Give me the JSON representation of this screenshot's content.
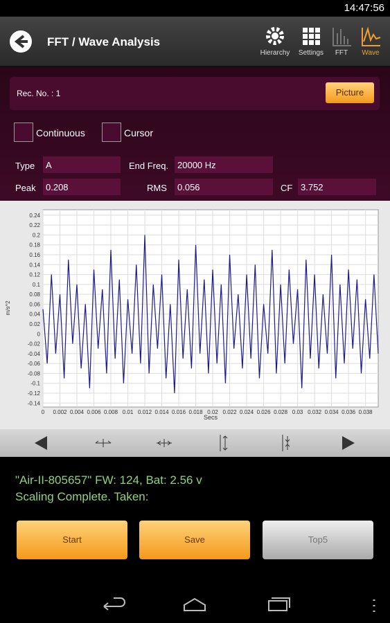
{
  "status_bar": {
    "time": "14:47:56"
  },
  "app_bar": {
    "title": "FFT / Wave Analysis",
    "actions": [
      "Hierarchy",
      "Settings",
      "FFT",
      "Wave"
    ]
  },
  "record": {
    "label": "Rec. No. : 1",
    "button": "Picture"
  },
  "options": [
    "Continuous",
    "Cursor"
  ],
  "fields": [
    {
      "label": "Type",
      "value": "A"
    },
    {
      "label": "End Freq.",
      "value": "20000 Hz"
    },
    {
      "label": "Peak",
      "value": "0.208"
    },
    {
      "label": "RMS",
      "value": "0.056"
    },
    {
      "label": "CF",
      "value": "3.752"
    }
  ],
  "chart_data": {
    "type": "line",
    "y_label": "m/s^2",
    "x_label": "Secs",
    "color": "#1a1a8c",
    "grid": true,
    "xlim": [
      0,
      0.0395
    ],
    "ylim": [
      -0.148,
      0.251
    ],
    "xticks": [
      0,
      0.002,
      0.004,
      0.006,
      0.008,
      0.01,
      0.012,
      0.014,
      0.016,
      0.018,
      0.02,
      0.022,
      0.024,
      0.026,
      0.028,
      0.03,
      0.032,
      0.034,
      0.036,
      0.038
    ],
    "yticks": [
      -0.14,
      -0.12,
      -0.1,
      -0.08,
      -0.06,
      -0.04,
      -0.02,
      0,
      0.02,
      0.04,
      0.06,
      0.08,
      0.1,
      0.12,
      0.14,
      0.16,
      0.18,
      0.2,
      0.22,
      0.24
    ],
    "x": [
      0,
      0.0005,
      0.001,
      0.0015,
      0.002,
      0.0025,
      0.003,
      0.0035,
      0.004,
      0.0045,
      0.005,
      0.0055,
      0.006,
      0.0065,
      0.007,
      0.0075,
      0.008,
      0.0085,
      0.009,
      0.0095,
      0.01,
      0.0105,
      0.011,
      0.0115,
      0.012,
      0.0125,
      0.013,
      0.0135,
      0.014,
      0.0145,
      0.015,
      0.0155,
      0.016,
      0.0165,
      0.017,
      0.0175,
      0.018,
      0.0185,
      0.019,
      0.0195,
      0.02,
      0.0205,
      0.021,
      0.0215,
      0.022,
      0.0225,
      0.023,
      0.0235,
      0.024,
      0.0245,
      0.025,
      0.0255,
      0.026,
      0.0265,
      0.027,
      0.0275,
      0.028,
      0.0285,
      0.029,
      0.0295,
      0.03,
      0.0305,
      0.031,
      0.0315,
      0.032,
      0.0325,
      0.033,
      0.0335,
      0.034,
      0.0345,
      0.035,
      0.0355,
      0.036,
      0.0365,
      0.037,
      0.0375,
      0.038,
      0.0385,
      0.039,
      0.0395
    ],
    "values": [
      0.05,
      -0.06,
      0.12,
      -0.04,
      0.08,
      -0.09,
      0.15,
      -0.02,
      0.1,
      -0.07,
      0.06,
      -0.11,
      0.13,
      -0.03,
      0.09,
      -0.08,
      0.17,
      -0.05,
      0.11,
      -0.1,
      0.07,
      -0.04,
      0.14,
      -0.06,
      0.2,
      -0.08,
      0.1,
      -0.03,
      0.12,
      -0.09,
      0.06,
      -0.12,
      0.15,
      -0.05,
      0.09,
      -0.07,
      0.18,
      -0.04,
      0.11,
      -0.08,
      0.13,
      -0.06,
      0.1,
      -0.1,
      0.16,
      -0.03,
      0.08,
      -0.07,
      0.12,
      -0.05,
      0.14,
      -0.09,
      0.06,
      -0.04,
      0.17,
      -0.08,
      0.1,
      -0.06,
      0.13,
      -0.02,
      0.09,
      -0.11,
      0.15,
      -0.05,
      0.12,
      -0.07,
      0.08,
      -0.04,
      0.16,
      -0.09,
      0.1,
      -0.06,
      0.13,
      -0.03,
      0.11,
      -0.08,
      0.07,
      -0.05,
      0.12,
      -0.04
    ]
  },
  "status": {
    "lines": [
      "\"Air-II-805657\" FW: 124, Bat: 2.56 v",
      "Scaling Complete. Taken:"
    ]
  },
  "buttons": [
    "Start",
    "Save",
    "Top5"
  ]
}
